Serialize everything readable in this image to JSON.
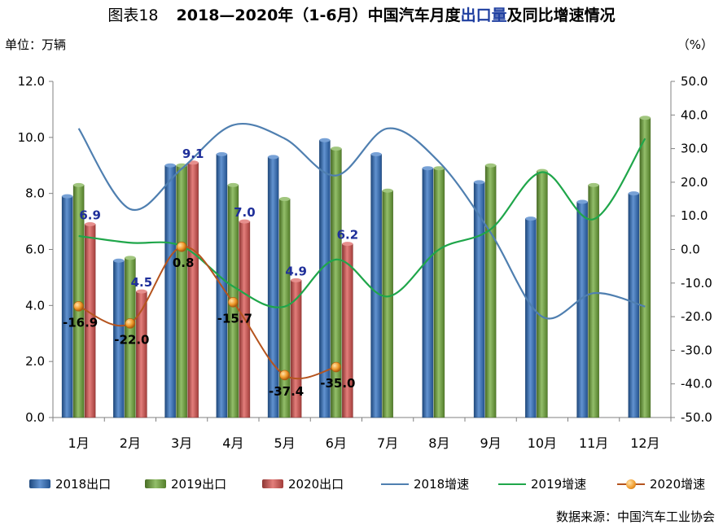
{
  "title": {
    "figure_label": "图表18",
    "prefix": "2018—2020年（1-6月）中国汽车月度",
    "highlight": "出口量",
    "suffix": "及同比增速情况"
  },
  "left_axis_unit": "单位：万辆",
  "right_axis_unit": "（%）",
  "source": "数据来源：中国汽车工业协会",
  "chart_data": {
    "type": "bar",
    "categories": [
      "1月",
      "2月",
      "3月",
      "4月",
      "5月",
      "6月",
      "7月",
      "8月",
      "9月",
      "10月",
      "11月",
      "12月"
    ],
    "y_left": {
      "min": 0,
      "max": 12,
      "step": 2,
      "ticks": [
        "0.0",
        "2.0",
        "4.0",
        "6.0",
        "8.0",
        "10.0",
        "12.0"
      ]
    },
    "y_right": {
      "min": -50,
      "max": 50,
      "step": 10,
      "ticks": [
        "-50.0",
        "-40.0",
        "-30.0",
        "-20.0",
        "-10.0",
        "0.0",
        "10.0",
        "20.0",
        "30.0",
        "40.0",
        "50.0"
      ]
    },
    "bar_series": [
      {
        "name": "2018出口",
        "color": "#2e6fc0",
        "values": [
          7.9,
          5.6,
          9.0,
          9.4,
          9.3,
          9.9,
          9.4,
          8.9,
          8.4,
          7.1,
          7.7,
          8.0
        ]
      },
      {
        "name": "2019出口",
        "color": "#6fa838",
        "values": [
          8.3,
          5.7,
          9.0,
          8.3,
          7.8,
          9.6,
          8.1,
          8.9,
          9.0,
          8.8,
          8.3,
          10.7
        ]
      },
      {
        "name": "2020出口",
        "color": "#d9534f",
        "values": [
          6.9,
          4.5,
          9.1,
          7.0,
          4.9,
          6.2,
          null,
          null,
          null,
          null,
          null,
          null
        ],
        "labels": [
          "6.9",
          "4.5",
          "9.1",
          "7.0",
          "4.9",
          "6.2"
        ]
      }
    ],
    "line_series": [
      {
        "name": "2018增速",
        "color": "#4f7fb0",
        "values": [
          36,
          12,
          24,
          37,
          33,
          22,
          36,
          26,
          5,
          -20,
          -13,
          -17
        ]
      },
      {
        "name": "2019增速",
        "color": "#1fa64a",
        "values": [
          4,
          2,
          1,
          -11,
          -17,
          -3,
          -14,
          0,
          6,
          23,
          9,
          33
        ]
      },
      {
        "name": "2020增速",
        "color": "#b5541e",
        "values": [
          -16.9,
          -22.0,
          0.8,
          -15.7,
          -37.4,
          -35.0,
          null,
          null,
          null,
          null,
          null,
          null
        ],
        "labels": [
          "-16.9",
          "-22.0",
          "0.8",
          "-15.7",
          "-37.4",
          "-35.0"
        ]
      }
    ],
    "grid": false,
    "legend_position": "bottom"
  }
}
